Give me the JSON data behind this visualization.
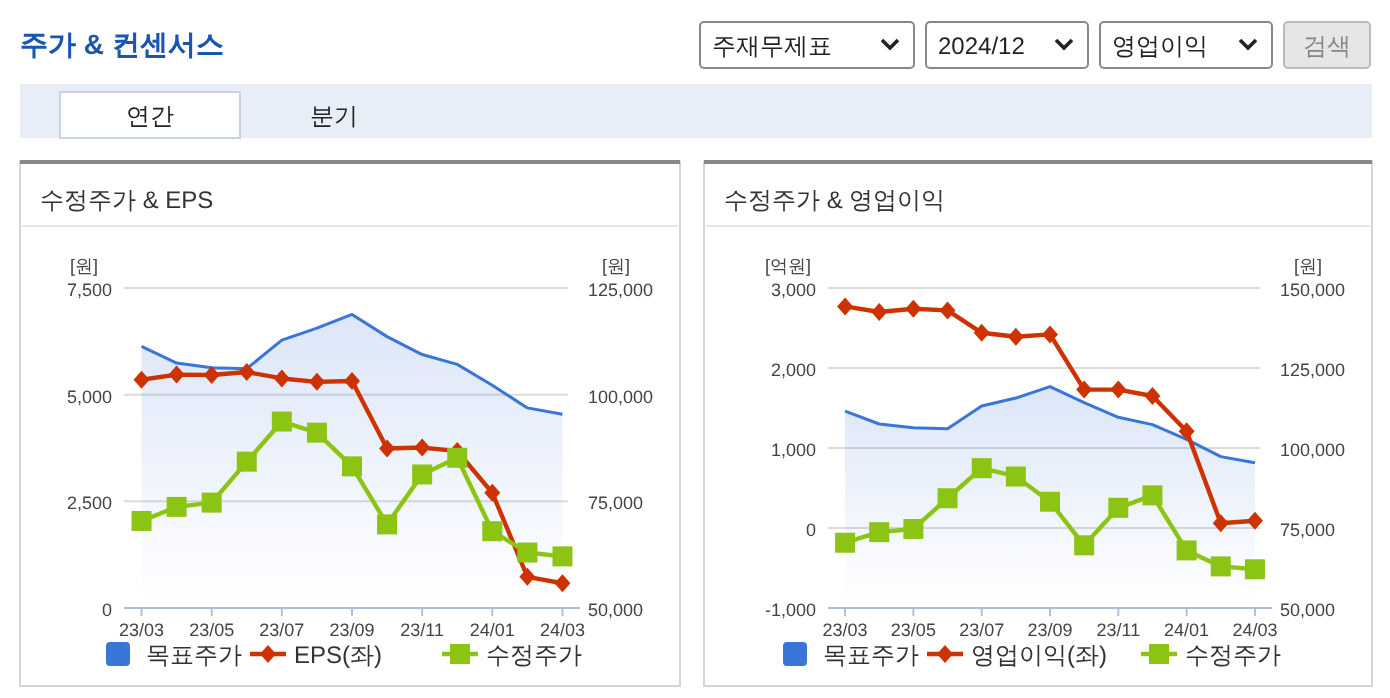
{
  "chart_data": [
    {
      "type": "other",
      "title": "주가 & 컨센서스",
      "annotations": [
        "주재무제표",
        "2024/12",
        "영업이익",
        "검색",
        "연간",
        "분기"
      ]
    },
    {
      "type": "line",
      "title": "수정주가 & EPS",
      "ylabel": "[원]",
      "y2label": "[원]",
      "categories": [
        "23/03",
        null,
        "23/05",
        null,
        "23/07",
        null,
        "23/09",
        null,
        "23/11",
        null,
        "24/01",
        null,
        "24/03"
      ],
      "ylim": [
        0,
        7500
      ],
      "yticks": [
        {
          "value": 0,
          "label": "0"
        },
        {
          "value": 2500,
          "label": "2,500"
        },
        {
          "value": 5000,
          "label": "5,000"
        },
        {
          "value": 7500,
          "label": "7,500"
        }
      ],
      "y2lim": [
        50000,
        125000
      ],
      "y2ticks": [
        {
          "value": 50000,
          "label": "50,000"
        },
        {
          "value": 75000,
          "label": "75,000"
        },
        {
          "value": 100000,
          "label": "100,000"
        },
        {
          "value": 125000,
          "label": "125,000"
        }
      ],
      "grid": "y",
      "legend": "bottom",
      "series": [
        {
          "name": "목표주가",
          "type": "area",
          "axis": "y2",
          "color": "#3a75d8",
          "marker": "none",
          "values": [
            111300,
            107400,
            106300,
            106100,
            112800,
            115600,
            118800,
            113600,
            109400,
            107100,
            102200,
            96900,
            95400
          ]
        },
        {
          "name": "EPS(좌)",
          "type": "line",
          "color": "#cc3300",
          "marker": "diamond",
          "values": [
            5350,
            5470,
            5460,
            5530,
            5380,
            5300,
            5320,
            3740,
            3760,
            3680,
            2700,
            730,
            580
          ]
        },
        {
          "name": "수정주가",
          "type": "line",
          "axis": "y2",
          "color": "#8cc414",
          "marker": "square",
          "values": [
            70400,
            73700,
            74700,
            84300,
            93700,
            91100,
            83200,
            69600,
            81300,
            85200,
            68000,
            63000,
            62100
          ]
        }
      ]
    },
    {
      "type": "line",
      "title": "수정주가 & 영업이익",
      "ylabel": "[억원]",
      "y2label": "[원]",
      "categories": [
        "23/03",
        null,
        "23/05",
        null,
        "23/07",
        null,
        "23/09",
        null,
        "23/11",
        null,
        "24/01",
        null,
        "24/03"
      ],
      "ylim": [
        -1000,
        3000
      ],
      "yticks": [
        {
          "value": -1000,
          "label": "-1,000"
        },
        {
          "value": 0,
          "label": "0"
        },
        {
          "value": 1000,
          "label": "1,000"
        },
        {
          "value": 2000,
          "label": "2,000"
        },
        {
          "value": 3000,
          "label": "3,000"
        }
      ],
      "y2lim": [
        50000,
        150000
      ],
      "y2ticks": [
        {
          "value": 50000,
          "label": "50,000"
        },
        {
          "value": 75000,
          "label": "75,000"
        },
        {
          "value": 100000,
          "label": "100,000"
        },
        {
          "value": 125000,
          "label": "125,000"
        },
        {
          "value": 150000,
          "label": "150,000"
        }
      ],
      "grid": "y",
      "legend": "bottom",
      "series": [
        {
          "name": "목표주가",
          "type": "area",
          "axis": "y2",
          "color": "#3a75d8",
          "marker": "none",
          "values": [
            111500,
            107500,
            106300,
            106000,
            113100,
            115600,
            119200,
            114200,
            109600,
            107300,
            102700,
            97300,
            95400
          ]
        },
        {
          "name": "영업이익(좌)",
          "type": "line",
          "color": "#cc3300",
          "marker": "diamond",
          "values": [
            2770,
            2700,
            2740,
            2720,
            2440,
            2390,
            2420,
            1730,
            1730,
            1650,
            1210,
            60,
            90
          ]
        },
        {
          "name": "수정주가",
          "type": "line",
          "axis": "y2",
          "color": "#8cc414",
          "marker": "square",
          "values": [
            70400,
            73700,
            74700,
            84300,
            93700,
            91100,
            83200,
            69600,
            81300,
            85200,
            68000,
            63000,
            62100
          ]
        }
      ]
    }
  ]
}
